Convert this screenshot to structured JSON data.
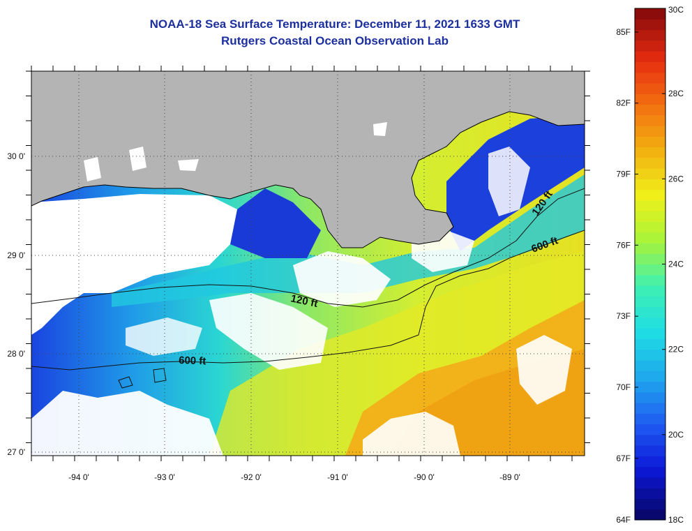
{
  "header": {
    "title": "NOAA-18 Sea Surface Temperature:  December 11, 2021 1633 GMT",
    "subtitle": "Rutgers Coastal Ocean Observation Lab"
  },
  "map": {
    "region": "Northern Gulf of Mexico / Louisiana coast",
    "lon_range": [
      -94.6,
      -88.3
    ],
    "lat_range": [
      26.95,
      30.85
    ],
    "lon_ticks": [
      {
        "value": -94,
        "label": "-94 0'"
      },
      {
        "value": -93,
        "label": "-93 0'"
      },
      {
        "value": -92,
        "label": "-92 0'"
      },
      {
        "value": -91,
        "label": "-91 0'"
      },
      {
        "value": -90,
        "label": "-90 0'"
      },
      {
        "value": -89,
        "label": "-89 0'"
      }
    ],
    "lat_ticks": [
      {
        "value": 30,
        "label": "30 0'"
      },
      {
        "value": 29,
        "label": "29 0'"
      },
      {
        "value": 28,
        "label": "28 0'"
      },
      {
        "value": 27,
        "label": "27 0'"
      }
    ],
    "contours": [
      {
        "label": "120 ft"
      },
      {
        "label": "600 ft"
      }
    ],
    "colors": {
      "land": "#b4b4b4",
      "cloud": "#ffffff",
      "grid": "#444444"
    }
  },
  "colorbar": {
    "fahrenheit": [
      {
        "value": 85,
        "label": "85F"
      },
      {
        "value": 82,
        "label": "82F"
      },
      {
        "value": 79,
        "label": "79F"
      },
      {
        "value": 76,
        "label": "76F"
      },
      {
        "value": 73,
        "label": "73F"
      },
      {
        "value": 70,
        "label": "70F"
      },
      {
        "value": 67,
        "label": "67F"
      },
      {
        "value": 64,
        "label": "64F"
      }
    ],
    "celsius": [
      {
        "value": 30,
        "label": "30C"
      },
      {
        "value": 28,
        "label": "28C"
      },
      {
        "value": 26,
        "label": "26C"
      },
      {
        "value": 24,
        "label": "24C"
      },
      {
        "value": 22,
        "label": "22C"
      },
      {
        "value": 20,
        "label": "20C"
      },
      {
        "value": 18,
        "label": "18C"
      }
    ],
    "c_range": [
      18,
      30
    ],
    "stops": [
      "#08086e",
      "#0c18d8",
      "#1f5cf2",
      "#1ea8ec",
      "#1fdce4",
      "#3ef0b4",
      "#a6f43a",
      "#f0f01a",
      "#f2b010",
      "#f27010",
      "#e62c10",
      "#8c0c0c"
    ]
  }
}
